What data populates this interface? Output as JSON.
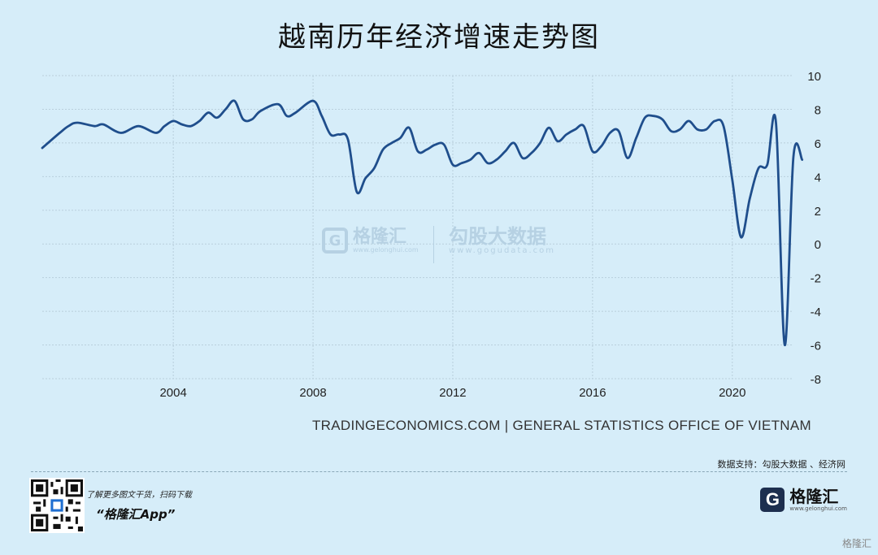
{
  "page": {
    "title": "越南历年经济增速走势图",
    "source": "TRADINGECONOMICS.COM | GENERAL STATISTICS OFFICE OF VIETNAM",
    "data_support": "数据支持：勾股大数据 、经济网",
    "promo_text": "了解更多图文干货，扫码下载",
    "promo_app": "“格隆汇App”",
    "brand_name": "格隆汇",
    "brand_url": "www.gelonghui.com",
    "corner_text": "格隆汇",
    "watermark_left": "格隆汇",
    "watermark_left_url": "www.gelonghui.com",
    "watermark_right": "勾股大数据",
    "watermark_right_url": "www.gogudata.com"
  },
  "colors": {
    "background": "#d6edf9",
    "line": "#1f4e8c",
    "grid": "#b9cfdc"
  },
  "chart_data": {
    "type": "line",
    "title": "越南历年经济增速走势图",
    "xlabel": "",
    "ylabel": "",
    "xlim": [
      2000.25,
      2021.75
    ],
    "ylim": [
      -8,
      10
    ],
    "x_ticks": [
      2004,
      2008,
      2012,
      2016,
      2020
    ],
    "x_tick_labels": [
      "2004",
      "2008",
      "2012",
      "2016",
      "2020"
    ],
    "y_ticks": [
      -8,
      -6,
      -4,
      -2,
      0,
      2,
      4,
      6,
      8,
      10
    ],
    "y_tick_labels": [
      "-8",
      "-6",
      "-4",
      "-2",
      "0",
      "2",
      "4",
      "6",
      "8",
      "10"
    ],
    "y_axis_side": "right",
    "grid": true,
    "series": [
      {
        "x": [
          2000.25,
          2000.75,
          2001.0,
          2001.25,
          2001.75,
          2002.0,
          2002.5,
          2003.0,
          2003.5,
          2003.75,
          2004.0,
          2004.25,
          2004.5,
          2004.75,
          2005.0,
          2005.25,
          2005.5,
          2005.75,
          2006.0,
          2006.25,
          2006.5,
          2007.0,
          2007.25,
          2007.5,
          2008.0,
          2008.25,
          2008.5,
          2008.75,
          2009.0,
          2009.25,
          2009.5,
          2009.75,
          2010.0,
          2010.25,
          2010.5,
          2010.75,
          2011.0,
          2011.25,
          2011.5,
          2011.75,
          2012.0,
          2012.25,
          2012.5,
          2012.75,
          2013.0,
          2013.25,
          2013.5,
          2013.75,
          2014.0,
          2014.25,
          2014.5,
          2014.75,
          2015.0,
          2015.25,
          2015.5,
          2015.75,
          2016.0,
          2016.25,
          2016.5,
          2016.75,
          2017.0,
          2017.25,
          2017.5,
          2017.75,
          2018.0,
          2018.25,
          2018.5,
          2018.75,
          2019.0,
          2019.25,
          2019.5,
          2019.75,
          2020.0,
          2020.25,
          2020.5,
          2020.75,
          2021.0,
          2021.25,
          2021.5,
          2021.75,
          2022.0
        ],
        "y": [
          5.7,
          6.6,
          7.0,
          7.2,
          7.0,
          7.1,
          6.6,
          7.0,
          6.6,
          7.0,
          7.3,
          7.1,
          7.0,
          7.3,
          7.8,
          7.5,
          8.0,
          8.5,
          7.4,
          7.4,
          7.9,
          8.3,
          7.6,
          7.8,
          8.5,
          7.6,
          6.5,
          6.5,
          6.2,
          3.1,
          3.9,
          4.5,
          5.6,
          6.0,
          6.3,
          6.9,
          5.5,
          5.6,
          5.9,
          5.9,
          4.7,
          4.8,
          5.0,
          5.4,
          4.8,
          5.0,
          5.5,
          6.0,
          5.1,
          5.4,
          6.0,
          6.9,
          6.1,
          6.5,
          6.8,
          7.0,
          5.5,
          5.8,
          6.6,
          6.7,
          5.1,
          6.3,
          7.5,
          7.6,
          7.4,
          6.7,
          6.8,
          7.3,
          6.8,
          6.8,
          7.3,
          7.0,
          3.8,
          0.4,
          2.7,
          4.5,
          4.7,
          7.2,
          -6.0,
          5.2,
          5.0
        ]
      }
    ]
  }
}
